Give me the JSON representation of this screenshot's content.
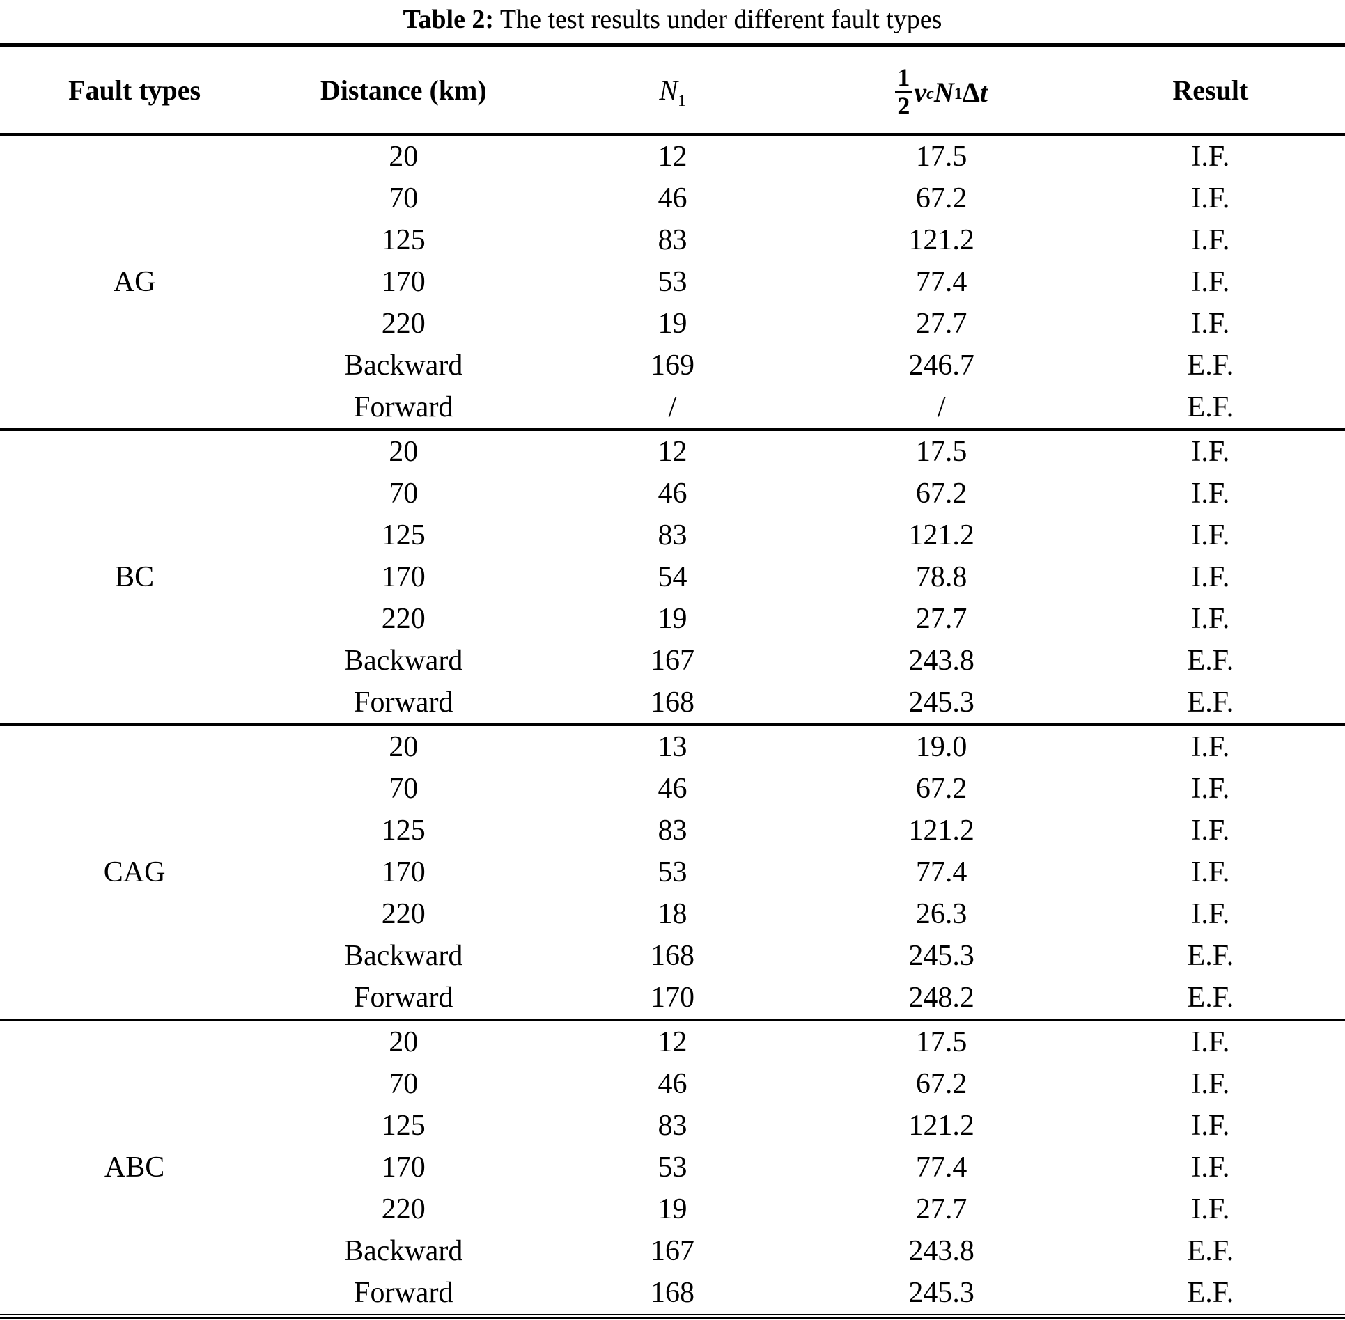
{
  "page": {
    "background_color": "#ffffff",
    "text_color": "#000000"
  },
  "caption": {
    "prefix": "Table 2:",
    "text": " The test results under different fault types"
  },
  "table": {
    "column_headers": {
      "fault_types": "Fault types",
      "distance": "Distance (km)",
      "n1": {
        "base": "N",
        "subscript": "1"
      },
      "formula": {
        "numerator": "1",
        "denominator": "2",
        "term_v": "v",
        "sub_c": "c",
        "term_n": "N",
        "sub_1": "1",
        "delta": "Δ",
        "term_t": "t"
      },
      "result": "Result"
    },
    "groups": [
      {
        "fault_type": "AG",
        "rows": [
          {
            "distance": "20",
            "n1": "12",
            "half_vc_n1_dt": "17.5",
            "result": "I.F."
          },
          {
            "distance": "70",
            "n1": "46",
            "half_vc_n1_dt": "67.2",
            "result": "I.F."
          },
          {
            "distance": "125",
            "n1": "83",
            "half_vc_n1_dt": "121.2",
            "result": "I.F."
          },
          {
            "distance": "170",
            "n1": "53",
            "half_vc_n1_dt": "77.4",
            "result": "I.F."
          },
          {
            "distance": "220",
            "n1": "19",
            "half_vc_n1_dt": "27.7",
            "result": "I.F."
          },
          {
            "distance": "Backward",
            "n1": "169",
            "half_vc_n1_dt": "246.7",
            "result": "E.F."
          },
          {
            "distance": "Forward",
            "n1": "/",
            "half_vc_n1_dt": "/",
            "result": "E.F."
          }
        ]
      },
      {
        "fault_type": "BC",
        "rows": [
          {
            "distance": "20",
            "n1": "12",
            "half_vc_n1_dt": "17.5",
            "result": "I.F."
          },
          {
            "distance": "70",
            "n1": "46",
            "half_vc_n1_dt": "67.2",
            "result": "I.F."
          },
          {
            "distance": "125",
            "n1": "83",
            "half_vc_n1_dt": "121.2",
            "result": "I.F."
          },
          {
            "distance": "170",
            "n1": "54",
            "half_vc_n1_dt": "78.8",
            "result": "I.F."
          },
          {
            "distance": "220",
            "n1": "19",
            "half_vc_n1_dt": "27.7",
            "result": "I.F."
          },
          {
            "distance": "Backward",
            "n1": "167",
            "half_vc_n1_dt": "243.8",
            "result": "E.F."
          },
          {
            "distance": "Forward",
            "n1": "168",
            "half_vc_n1_dt": "245.3",
            "result": "E.F."
          }
        ]
      },
      {
        "fault_type": "CAG",
        "rows": [
          {
            "distance": "20",
            "n1": "13",
            "half_vc_n1_dt": "19.0",
            "result": "I.F."
          },
          {
            "distance": "70",
            "n1": "46",
            "half_vc_n1_dt": "67.2",
            "result": "I.F."
          },
          {
            "distance": "125",
            "n1": "83",
            "half_vc_n1_dt": "121.2",
            "result": "I.F."
          },
          {
            "distance": "170",
            "n1": "53",
            "half_vc_n1_dt": "77.4",
            "result": "I.F."
          },
          {
            "distance": "220",
            "n1": "18",
            "half_vc_n1_dt": "26.3",
            "result": "I.F."
          },
          {
            "distance": "Backward",
            "n1": "168",
            "half_vc_n1_dt": "245.3",
            "result": "E.F."
          },
          {
            "distance": "Forward",
            "n1": "170",
            "half_vc_n1_dt": "248.2",
            "result": "E.F."
          }
        ]
      },
      {
        "fault_type": "ABC",
        "rows": [
          {
            "distance": "20",
            "n1": "12",
            "half_vc_n1_dt": "17.5",
            "result": "I.F."
          },
          {
            "distance": "70",
            "n1": "46",
            "half_vc_n1_dt": "67.2",
            "result": "I.F."
          },
          {
            "distance": "125",
            "n1": "83",
            "half_vc_n1_dt": "121.2",
            "result": "I.F."
          },
          {
            "distance": "170",
            "n1": "53",
            "half_vc_n1_dt": "77.4",
            "result": "I.F."
          },
          {
            "distance": "220",
            "n1": "19",
            "half_vc_n1_dt": "27.7",
            "result": "I.F."
          },
          {
            "distance": "Backward",
            "n1": "167",
            "half_vc_n1_dt": "243.8",
            "result": "E.F."
          },
          {
            "distance": "Forward",
            "n1": "168",
            "half_vc_n1_dt": "245.3",
            "result": "E.F."
          }
        ]
      }
    ]
  },
  "chart_data": {
    "type": "table",
    "title": "Table 2: The test results under different fault types",
    "columns": [
      "Fault types",
      "Distance (km)",
      "N1",
      "(1/2)vcN1Δt",
      "Result"
    ],
    "rows": [
      [
        "AG",
        "20",
        "12",
        "17.5",
        "I.F."
      ],
      [
        "AG",
        "70",
        "46",
        "67.2",
        "I.F."
      ],
      [
        "AG",
        "125",
        "83",
        "121.2",
        "I.F."
      ],
      [
        "AG",
        "170",
        "53",
        "77.4",
        "I.F."
      ],
      [
        "AG",
        "220",
        "19",
        "27.7",
        "I.F."
      ],
      [
        "AG",
        "Backward",
        "169",
        "246.7",
        "E.F."
      ],
      [
        "AG",
        "Forward",
        "/",
        "/",
        "E.F."
      ],
      [
        "BC",
        "20",
        "12",
        "17.5",
        "I.F."
      ],
      [
        "BC",
        "70",
        "46",
        "67.2",
        "I.F."
      ],
      [
        "BC",
        "125",
        "83",
        "121.2",
        "I.F."
      ],
      [
        "BC",
        "170",
        "54",
        "78.8",
        "I.F."
      ],
      [
        "BC",
        "220",
        "19",
        "27.7",
        "I.F."
      ],
      [
        "BC",
        "Backward",
        "167",
        "243.8",
        "E.F."
      ],
      [
        "BC",
        "Forward",
        "168",
        "245.3",
        "E.F."
      ],
      [
        "CAG",
        "20",
        "13",
        "19.0",
        "I.F."
      ],
      [
        "CAG",
        "70",
        "46",
        "67.2",
        "I.F."
      ],
      [
        "CAG",
        "125",
        "83",
        "121.2",
        "I.F."
      ],
      [
        "CAG",
        "170",
        "53",
        "77.4",
        "I.F."
      ],
      [
        "CAG",
        "220",
        "18",
        "26.3",
        "I.F."
      ],
      [
        "CAG",
        "Backward",
        "168",
        "245.3",
        "E.F."
      ],
      [
        "CAG",
        "Forward",
        "170",
        "248.2",
        "E.F."
      ],
      [
        "ABC",
        "20",
        "12",
        "17.5",
        "I.F."
      ],
      [
        "ABC",
        "70",
        "46",
        "67.2",
        "I.F."
      ],
      [
        "ABC",
        "125",
        "83",
        "121.2",
        "I.F."
      ],
      [
        "ABC",
        "170",
        "53",
        "77.4",
        "I.F."
      ],
      [
        "ABC",
        "220",
        "19",
        "27.7",
        "I.F."
      ],
      [
        "ABC",
        "Backward",
        "167",
        "243.8",
        "E.F."
      ],
      [
        "ABC",
        "Forward",
        "168",
        "245.3",
        "E.F."
      ]
    ]
  }
}
